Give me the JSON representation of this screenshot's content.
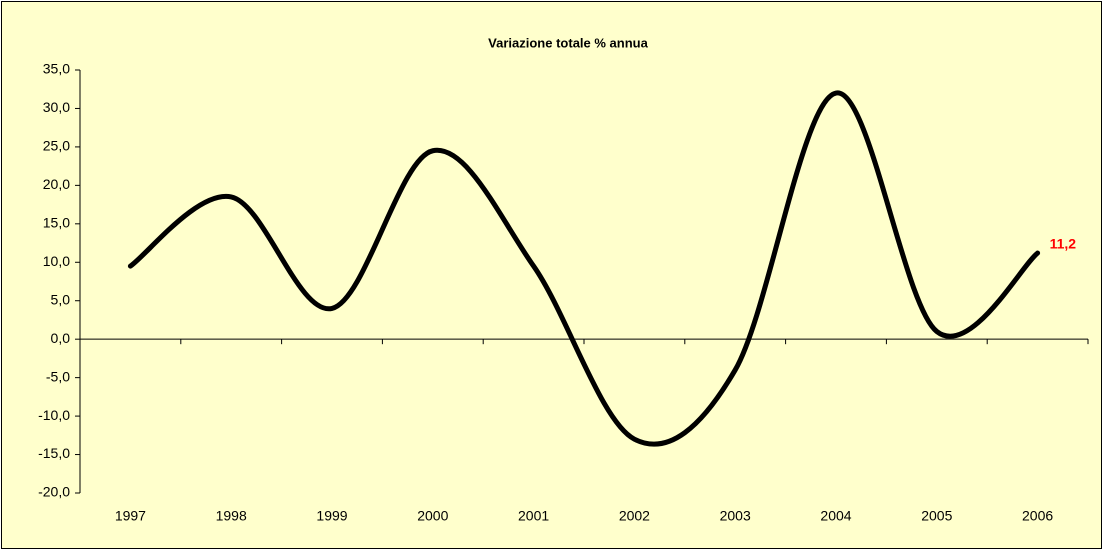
{
  "chart_data": {
    "type": "line",
    "title": "Variazione totale % annua",
    "categories": [
      "1997",
      "1998",
      "1999",
      "2000",
      "2001",
      "2002",
      "2003",
      "2004",
      "2005",
      "2006"
    ],
    "series": [
      {
        "color": "#000000",
        "values": [
          9.5,
          18.5,
          4,
          24.5,
          9.5,
          -13,
          -4,
          32,
          1,
          11.2
        ],
        "value_labels": [
          null,
          null,
          null,
          null,
          null,
          null,
          null,
          null,
          null,
          "11,2"
        ],
        "label_color": "#ff0000"
      }
    ],
    "ylim": [
      -20,
      35
    ],
    "yticks": [
      {
        "value": -20,
        "label": "-20,0"
      },
      {
        "value": -15,
        "label": "-15,0"
      },
      {
        "value": -10,
        "label": "-10,0"
      },
      {
        "value": -5,
        "label": "-5,0"
      },
      {
        "value": 0,
        "label": "0,0"
      },
      {
        "value": 5,
        "label": "5,0"
      },
      {
        "value": 10,
        "label": "10,0"
      },
      {
        "value": 15,
        "label": "15,0"
      },
      {
        "value": 20,
        "label": "20,0"
      },
      {
        "value": 25,
        "label": "25,0"
      },
      {
        "value": 30,
        "label": "30,0"
      },
      {
        "value": 35,
        "label": "35,0"
      }
    ],
    "smooth": true,
    "grid": false
  }
}
